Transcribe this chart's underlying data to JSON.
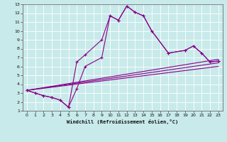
{
  "xlabel": "Windchill (Refroidissement éolien,°C)",
  "background_color": "#c8eaea",
  "line_color": "#880088",
  "xlim": [
    -0.5,
    23.5
  ],
  "ylim": [
    1,
    13
  ],
  "xticks": [
    0,
    1,
    2,
    3,
    4,
    5,
    6,
    7,
    8,
    9,
    10,
    11,
    12,
    13,
    14,
    15,
    16,
    17,
    18,
    19,
    20,
    21,
    22,
    23
  ],
  "yticks": [
    1,
    2,
    3,
    4,
    5,
    6,
    7,
    8,
    9,
    10,
    11,
    12,
    13
  ],
  "line1_x": [
    0,
    1,
    2,
    3,
    4,
    5,
    6,
    7,
    9,
    10,
    11,
    12,
    13,
    14,
    15,
    17,
    19,
    20,
    21,
    22,
    23
  ],
  "line1_y": [
    3.3,
    3.0,
    2.7,
    2.5,
    2.2,
    1.4,
    6.5,
    7.3,
    9.0,
    11.7,
    11.2,
    12.8,
    12.1,
    11.7,
    10.0,
    7.5,
    7.8,
    8.3,
    7.5,
    6.5,
    6.6
  ],
  "line2_x": [
    0,
    1,
    2,
    3,
    4,
    5,
    6,
    7,
    9,
    10,
    11,
    12,
    13,
    14,
    15,
    17,
    19,
    20,
    21,
    22,
    23
  ],
  "line2_y": [
    3.3,
    3.0,
    2.7,
    2.5,
    2.2,
    1.4,
    3.5,
    6.0,
    7.0,
    11.7,
    11.2,
    12.8,
    12.1,
    11.7,
    10.0,
    7.5,
    7.8,
    8.3,
    7.5,
    6.5,
    6.6
  ],
  "line3_x": [
    0,
    23
  ],
  "line3_y": [
    3.3,
    6.8
  ],
  "line4_x": [
    0,
    23
  ],
  "line4_y": [
    3.3,
    6.4
  ],
  "line5_x": [
    0,
    23
  ],
  "line5_y": [
    3.3,
    6.0
  ]
}
